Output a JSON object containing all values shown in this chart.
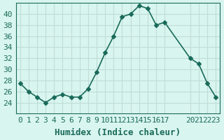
{
  "x": [
    0,
    1,
    2,
    3,
    4,
    5,
    6,
    7,
    8,
    9,
    10,
    11,
    12,
    13,
    14,
    15,
    16,
    17,
    20,
    21,
    22,
    23
  ],
  "y": [
    27.5,
    26.0,
    25.0,
    24.0,
    25.0,
    25.5,
    25.0,
    25.0,
    26.5,
    29.5,
    33.0,
    36.0,
    39.5,
    40.0,
    41.5,
    41.0,
    38.0,
    38.5,
    32.0,
    31.0,
    27.5,
    25.0
  ],
  "xtick_positions": [
    0,
    1,
    2,
    3,
    4,
    5,
    6,
    7,
    8,
    9,
    10,
    11,
    12,
    13,
    14,
    15,
    16,
    17,
    20,
    21,
    22,
    23
  ],
  "xtick_labels": [
    "0",
    "1",
    "2",
    "3",
    "4",
    "5",
    "6",
    "7",
    "8",
    "9",
    "10",
    "11",
    "12",
    "13",
    "14",
    "15",
    "16",
    "17",
    "20",
    "21",
    "22",
    "23"
  ],
  "yticks": [
    24,
    26,
    28,
    30,
    32,
    34,
    36,
    38,
    40
  ],
  "line_color": "#1a6b5a",
  "marker": "D",
  "marker_size": 3,
  "bg_color": "#d9f5f0",
  "grid_color": "#c0ddd8",
  "xlabel": "Humidex (Indice chaleur)",
  "xlim": [
    -0.5,
    23.5
  ],
  "ylim": [
    22,
    42
  ],
  "label_fontsize": 9,
  "tick_fontsize": 8
}
